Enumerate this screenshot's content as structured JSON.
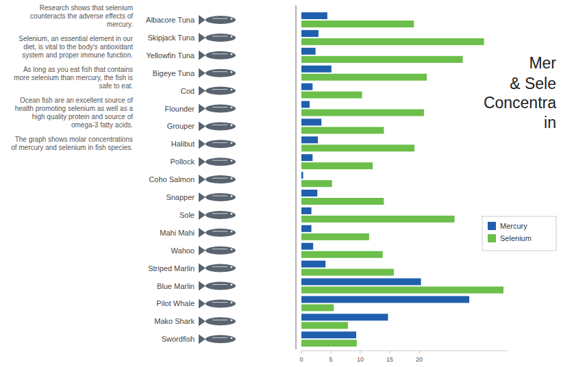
{
  "notes": [
    "Research shows that selenium counteracts the adverse effects of mercury.",
    "Selenium, an essential element in our diet, is vital to the body's antioxidant system and proper immune function.",
    "As long as you eat fish that contains more selenium than mercury, the fish is safe to eat.",
    "Ocean fish are an excellent source of health promoting selenium as well as a high quality protein and source of omega-3 fatty acids.",
    "The graph shows molar concentrations of mercury and selenium in fish species."
  ],
  "chart_data": {
    "type": "bar",
    "orientation": "horizontal",
    "title": [
      "Mer",
      "& Sele",
      "Concentra",
      "in"
    ],
    "categories": [
      "Albacore Tuna",
      "Skipjack Tuna",
      "Yellowfin Tuna",
      "Bigeye Tuna",
      "Cod",
      "Flounder",
      "Grouper",
      "Halibut",
      "Pollock",
      "Coho Salmon",
      "Snapper",
      "Sole",
      "Mahi Mahi",
      "Wahoo",
      "Striped Marlin",
      "Blue Marlin",
      "Pilot Whale",
      "Mako Shark",
      "Swordfish"
    ],
    "series": [
      {
        "name": "Mercury",
        "color": "#1f5fae",
        "values": [
          4.4,
          2.9,
          2.4,
          5.1,
          1.9,
          1.4,
          3.4,
          2.8,
          1.9,
          0.3,
          2.7,
          1.7,
          1.7,
          2.0,
          4.1,
          20.3,
          28.5,
          14.7,
          9.3
        ]
      },
      {
        "name": "Selenium",
        "color": "#6cbf4a",
        "values": [
          19.1,
          31.0,
          27.4,
          21.3,
          10.3,
          20.8,
          14.0,
          19.2,
          12.1,
          5.2,
          14.0,
          26.0,
          11.5,
          13.8,
          15.7,
          34.3,
          5.5,
          7.9,
          9.4
        ]
      }
    ],
    "xlim": [
      0,
      35
    ],
    "xticks": [
      0,
      5,
      10,
      15,
      20
    ],
    "grid": false,
    "legend": "right"
  }
}
